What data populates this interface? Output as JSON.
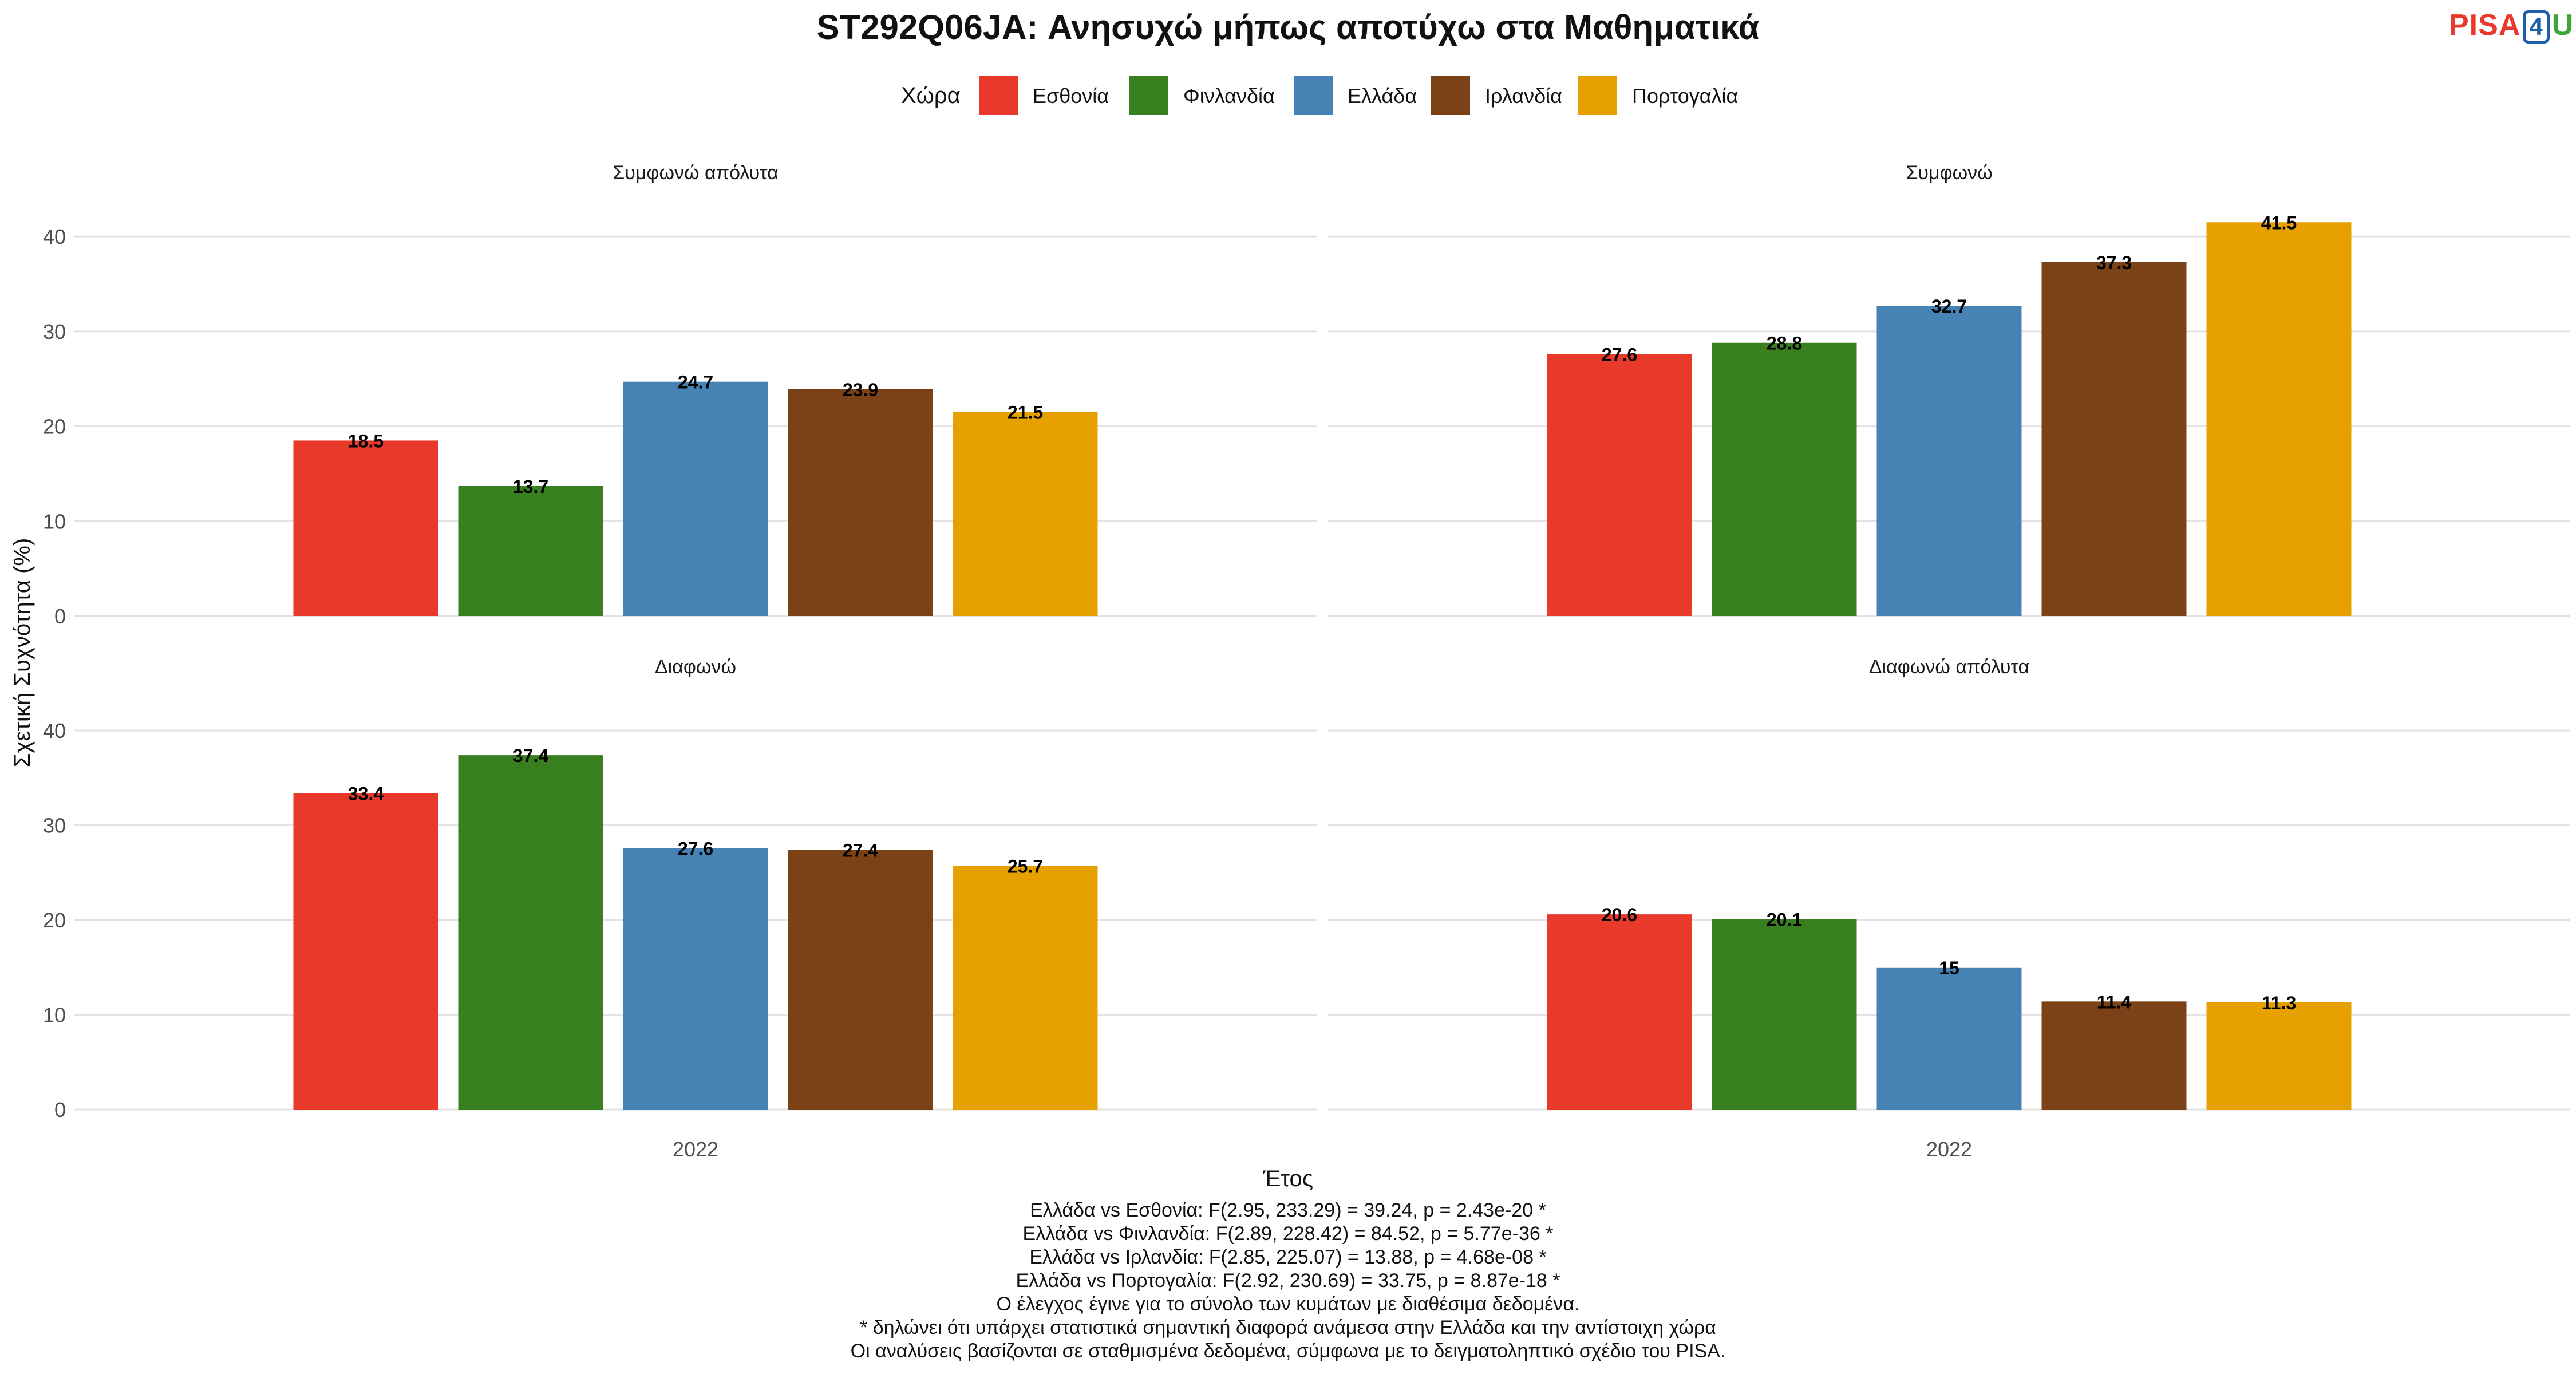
{
  "chart_data": {
    "type": "bar",
    "title": "ST292Q06JA: Ανησυχώ μήπως αποτύχω στα Μαθηματικά",
    "xlabel": "Έτος",
    "ylabel": "Σχετική Συχνότητα (%)",
    "ylim": [
      0,
      42
    ],
    "yticks": [
      0,
      10,
      20,
      30,
      40
    ],
    "categories": [
      "2022"
    ],
    "legend": {
      "title": "Χώρα",
      "position": "top",
      "entries": [
        {
          "name": "Εσθονία",
          "color": "#e8392a"
        },
        {
          "name": "Φινλανδία",
          "color": "#38801f"
        },
        {
          "name": "Ελλάδα",
          "color": "#4682b4"
        },
        {
          "name": "Ιρλανδία",
          "color": "#7a4216"
        },
        {
          "name": "Πορτογαλία",
          "color": "#e6a000"
        }
      ]
    },
    "facets": [
      {
        "label": "Συμφωνώ απόλυτα",
        "values": [
          18.5,
          13.7,
          24.7,
          23.9,
          21.5
        ],
        "value_labels": [
          "18.5",
          "13.7",
          "24.7",
          "23.9",
          "21.5"
        ]
      },
      {
        "label": "Συμφωνώ",
        "values": [
          27.6,
          28.8,
          32.7,
          37.3,
          41.5
        ],
        "value_labels": [
          "27.6",
          "28.8",
          "32.7",
          "37.3",
          "41.5"
        ]
      },
      {
        "label": "Διαφωνώ",
        "values": [
          33.4,
          37.4,
          27.6,
          27.4,
          25.7
        ],
        "value_labels": [
          "33.4",
          "37.4",
          "27.6",
          "27.4",
          "25.7"
        ]
      },
      {
        "label": "Διαφωνώ απόλυτα",
        "values": [
          20.6,
          20.1,
          15,
          11.4,
          11.3
        ],
        "value_labels": [
          "20.6",
          "20.1",
          "15",
          "11.4",
          "11.3"
        ]
      }
    ],
    "grid": true,
    "footnotes": [
      "Ελλάδα vs Εσθονία: F(2.95, 233.29) = 39.24, p = 2.43e-20 *",
      "Ελλάδα vs Φινλανδία: F(2.89, 228.42) = 84.52, p = 5.77e-36 *",
      "Ελλάδα vs Ιρλανδία: F(2.85, 225.07) = 13.88, p = 4.68e-08 *",
      "Ελλάδα vs Πορτογαλία: F(2.92, 230.69) = 33.75, p = 8.87e-18 *",
      "Ο έλεγχος έγινε για το σύνολο των κυμάτων με διαθέσιμα δεδομένα.",
      "* δηλώνει ότι υπάρχει στατιστικά σημαντική διαφορά ανάμεσα στην Ελλάδα και την αντίστοιχη χώρα",
      "Οι αναλύσεις βασίζονται σε σταθμισμένα δεδομένα, σύμφωνα με το δειγματοληπτικό σχέδιο του PISA."
    ]
  },
  "logo": {
    "part1": "PISA",
    "part2": "4",
    "part3": "U"
  }
}
